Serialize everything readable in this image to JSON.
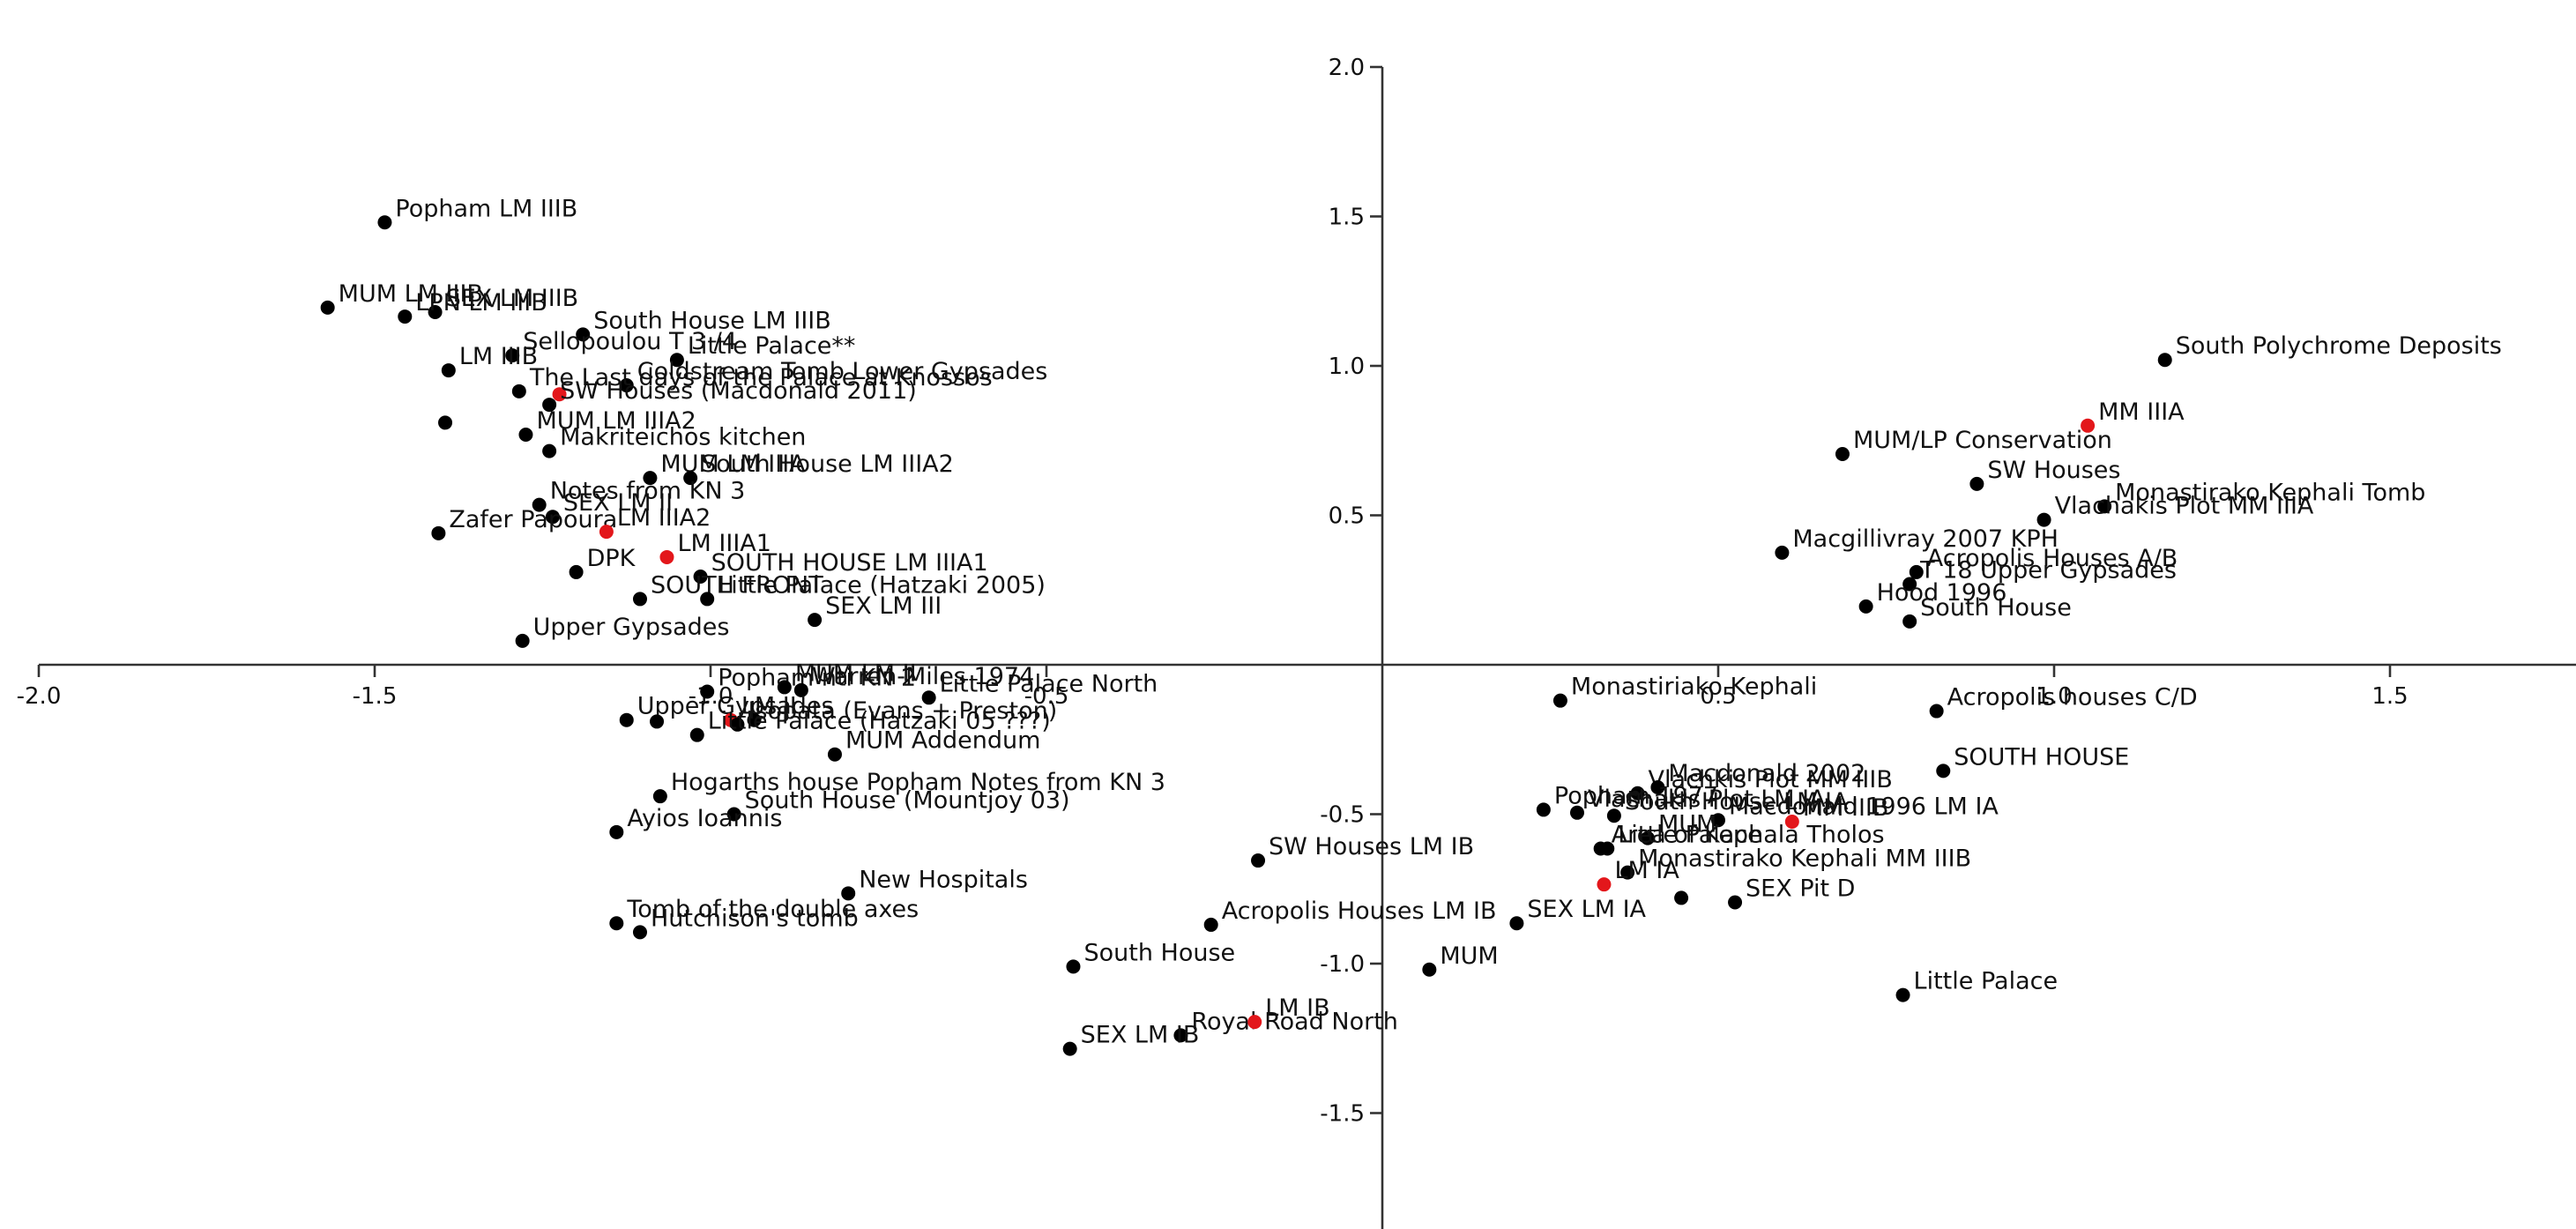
{
  "chart_data": {
    "type": "scatter",
    "title": "",
    "xlabel": "",
    "ylabel": "",
    "xlim": [
      -2.0,
      1.8
    ],
    "ylim": [
      -1.85,
      2.0
    ],
    "xticks": [
      -2.0,
      -1.5,
      -1.0,
      -0.5,
      0.5,
      1.0,
      1.5
    ],
    "yticks": [
      2.0,
      1.5,
      1.0,
      0.5,
      -0.5,
      -1.0,
      -1.5
    ],
    "colors": {
      "point": "#000000",
      "highlight": "#e3171b",
      "axis": "#333333"
    },
    "points": [
      {
        "label": "Popham LM IIIB",
        "x": -1.485,
        "y": 1.48,
        "c": "black"
      },
      {
        "label": "SEX LM IIIB",
        "x": -1.41,
        "y": 1.18,
        "c": "black"
      },
      {
        "label": "MUM LM IIIB",
        "x": -1.57,
        "y": 1.195,
        "c": "black"
      },
      {
        "label": "LPN LM IIIB",
        "x": -1.455,
        "y": 1.165,
        "c": "black"
      },
      {
        "label": "South House LM IIIB",
        "x": -1.19,
        "y": 1.105,
        "c": "black"
      },
      {
        "label": "Sellopoulou T 3 /4",
        "x": -1.295,
        "y": 1.035,
        "c": "black"
      },
      {
        "label": "Little Palace**",
        "x": -1.05,
        "y": 1.02,
        "c": "black"
      },
      {
        "label": "LM IIIB",
        "x": -1.39,
        "y": 0.985,
        "c": "black"
      },
      {
        "label": "Coldstream Tomb Lower Gypsades",
        "x": -1.125,
        "y": 0.935,
        "c": "black"
      },
      {
        "label": "The Last days of the Palace at Knossos",
        "x": -1.285,
        "y": 0.915,
        "c": "black"
      },
      {
        "label": "",
        "x": -1.225,
        "y": 0.905,
        "c": "red"
      },
      {
        "label": "SW Houses (Macdonald 2011)",
        "x": -1.24,
        "y": 0.87,
        "c": "black"
      },
      {
        "label": "",
        "x": -1.395,
        "y": 0.81,
        "c": "black"
      },
      {
        "label": "MUM LM IIIA2",
        "x": -1.275,
        "y": 0.77,
        "c": "black"
      },
      {
        "label": "Makriteichos kitchen",
        "x": -1.24,
        "y": 0.715,
        "c": "black"
      },
      {
        "label": "MUM LM IIIA",
        "x": -1.09,
        "y": 0.625,
        "c": "black"
      },
      {
        "label": "South House LM IIIA2",
        "x": -1.03,
        "y": 0.625,
        "c": "black"
      },
      {
        "label": "Notes from KN 3",
        "x": -1.255,
        "y": 0.535,
        "c": "black"
      },
      {
        "label": "SEX LM II",
        "x": -1.235,
        "y": 0.495,
        "c": "black"
      },
      {
        "label": "Zafer Papoura",
        "x": -1.405,
        "y": 0.44,
        "c": "black"
      },
      {
        "label": "LM IIIA2",
        "x": -1.155,
        "y": 0.445,
        "c": "red"
      },
      {
        "label": "DPK",
        "x": -1.2,
        "y": 0.31,
        "c": "black"
      },
      {
        "label": "LM IIIA1",
        "x": -1.065,
        "y": 0.36,
        "c": "red"
      },
      {
        "label": "SOUTH HOUSE LM IIIA1",
        "x": -1.015,
        "y": 0.295,
        "c": "black"
      },
      {
        "label": "SOUTH FRONT",
        "x": -1.105,
        "y": 0.22,
        "c": "black"
      },
      {
        "label": "Little Palace (Hatzaki 2005)",
        "x": -1.005,
        "y": 0.22,
        "c": "black"
      },
      {
        "label": "SEX LM III",
        "x": -0.845,
        "y": 0.15,
        "c": "black"
      },
      {
        "label": "Upper Gypsades",
        "x": -1.28,
        "y": 0.08,
        "c": "black"
      },
      {
        "label": "Popham nti KN 2",
        "x": -1.005,
        "y": -0.09,
        "c": "black"
      },
      {
        "label": "MUM LM II",
        "x": -0.89,
        "y": -0.075,
        "c": "black"
      },
      {
        "label": "Warren-Miles 1974",
        "x": -0.865,
        "y": -0.085,
        "c": "black"
      },
      {
        "label": "Little Palace North",
        "x": -0.675,
        "y": -0.11,
        "c": "black"
      },
      {
        "label": "Upper Gypsades",
        "x": -1.125,
        "y": -0.185,
        "c": "black"
      },
      {
        "label": "",
        "x": -1.08,
        "y": -0.19,
        "c": "black"
      },
      {
        "label": "LM II",
        "x": -0.97,
        "y": -0.185,
        "c": "red"
      },
      {
        "label": "",
        "x": -0.935,
        "y": -0.185,
        "c": "black"
      },
      {
        "label": "Isopata (Evans + Preston)",
        "x": -0.96,
        "y": -0.2,
        "c": "black"
      },
      {
        "label": "Little Palace (Hatzaki 05 ???)",
        "x": -1.02,
        "y": -0.235,
        "c": "black"
      },
      {
        "label": "MUM Addendum",
        "x": -0.815,
        "y": -0.3,
        "c": "black"
      },
      {
        "label": "Hogarths house Popham Notes from KN 3",
        "x": -1.075,
        "y": -0.44,
        "c": "black"
      },
      {
        "label": "South House (Mountjoy 03)",
        "x": -0.965,
        "y": -0.5,
        "c": "black"
      },
      {
        "label": "Ayios Ioannis",
        "x": -1.14,
        "y": -0.56,
        "c": "black"
      },
      {
        "label": "SW Houses LM IB",
        "x": -0.185,
        "y": -0.655,
        "c": "black"
      },
      {
        "label": "New Hospitals",
        "x": -0.795,
        "y": -0.765,
        "c": "black"
      },
      {
        "label": "Tomb of the double axes",
        "x": -1.14,
        "y": -0.865,
        "c": "black"
      },
      {
        "label": "Hutchison's tomb",
        "x": -1.105,
        "y": -0.895,
        "c": "black"
      },
      {
        "label": "Acropolis Houses LM IB",
        "x": -0.255,
        "y": -0.87,
        "c": "black"
      },
      {
        "label": "South House",
        "x": -0.46,
        "y": -1.01,
        "c": "black"
      },
      {
        "label": "Royal Road North",
        "x": -0.3,
        "y": -1.24,
        "c": "black"
      },
      {
        "label": "LM IB",
        "x": -0.19,
        "y": -1.195,
        "c": "red"
      },
      {
        "label": "SEX LM IB",
        "x": -0.465,
        "y": -1.285,
        "c": "black"
      },
      {
        "label": "South Polychrome Deposits",
        "x": 1.165,
        "y": 1.02,
        "c": "black"
      },
      {
        "label": "MM IIIA",
        "x": 1.05,
        "y": 0.8,
        "c": "red"
      },
      {
        "label": "MUM/LP Conservation",
        "x": 0.685,
        "y": 0.705,
        "c": "black"
      },
      {
        "label": "SW Houses",
        "x": 0.885,
        "y": 0.605,
        "c": "black"
      },
      {
        "label": "Monastirako Kephali Tomb",
        "x": 1.075,
        "y": 0.53,
        "c": "black"
      },
      {
        "label": "Vlachakis Plot MM IIIA",
        "x": 0.985,
        "y": 0.485,
        "c": "black"
      },
      {
        "label": "Macgillivray 2007 KPH",
        "x": 0.595,
        "y": 0.375,
        "c": "black"
      },
      {
        "label": "Acropolis Houses A/B",
        "x": 0.795,
        "y": 0.31,
        "c": "black"
      },
      {
        "label": "T 18 Upper Gypsades",
        "x": 0.785,
        "y": 0.27,
        "c": "black"
      },
      {
        "label": "Hood 1996",
        "x": 0.72,
        "y": 0.195,
        "c": "black"
      },
      {
        "label": "South House",
        "x": 0.785,
        "y": 0.145,
        "c": "black"
      },
      {
        "label": "Monastiriako Kephali",
        "x": 0.265,
        "y": -0.12,
        "c": "black"
      },
      {
        "label": "Acropolis houses C/D",
        "x": 0.825,
        "y": -0.155,
        "c": "black"
      },
      {
        "label": "SOUTH HOUSE",
        "x": 0.835,
        "y": -0.355,
        "c": "black"
      },
      {
        "label": "Vlachkis Plot MM IIIB",
        "x": 0.38,
        "y": -0.43,
        "c": "black"
      },
      {
        "label": "Macdonald 2002",
        "x": 0.41,
        "y": -0.41,
        "c": "black"
      },
      {
        "label": "Popham 1977",
        "x": 0.24,
        "y": -0.485,
        "c": "black"
      },
      {
        "label": "Vlachakis Plot LM IA",
        "x": 0.29,
        "y": -0.495,
        "c": "black"
      },
      {
        "label": "South House LM IA",
        "x": 0.345,
        "y": -0.505,
        "c": "black"
      },
      {
        "label": "Macdonald 1996 LM IA",
        "x": 0.5,
        "y": -0.52,
        "c": "black"
      },
      {
        "label": "MUM",
        "x": 0.395,
        "y": -0.58,
        "c": "black"
      },
      {
        "label": "MM IIIB",
        "x": 0.61,
        "y": -0.525,
        "c": "red"
      },
      {
        "label": "Little Palace",
        "x": 0.335,
        "y": -0.615,
        "c": "black"
      },
      {
        "label": "Area of Kephala Tholos",
        "x": 0.325,
        "y": -0.615,
        "c": "black"
      },
      {
        "label": "Monastirako Kephali MM IIIB",
        "x": 0.365,
        "y": -0.695,
        "c": "black"
      },
      {
        "label": "LM IA",
        "x": 0.33,
        "y": -0.735,
        "c": "red"
      },
      {
        "label": "SEX Pit D",
        "x": 0.525,
        "y": -0.795,
        "c": "black"
      },
      {
        "label": "",
        "x": 0.445,
        "y": -0.78,
        "c": "black"
      },
      {
        "label": "SEX LM IA",
        "x": 0.2,
        "y": -0.865,
        "c": "black"
      },
      {
        "label": "MUM",
        "x": 0.07,
        "y": -1.02,
        "c": "black"
      },
      {
        "label": "Little Palace",
        "x": 0.775,
        "y": -1.105,
        "c": "black"
      }
    ]
  }
}
